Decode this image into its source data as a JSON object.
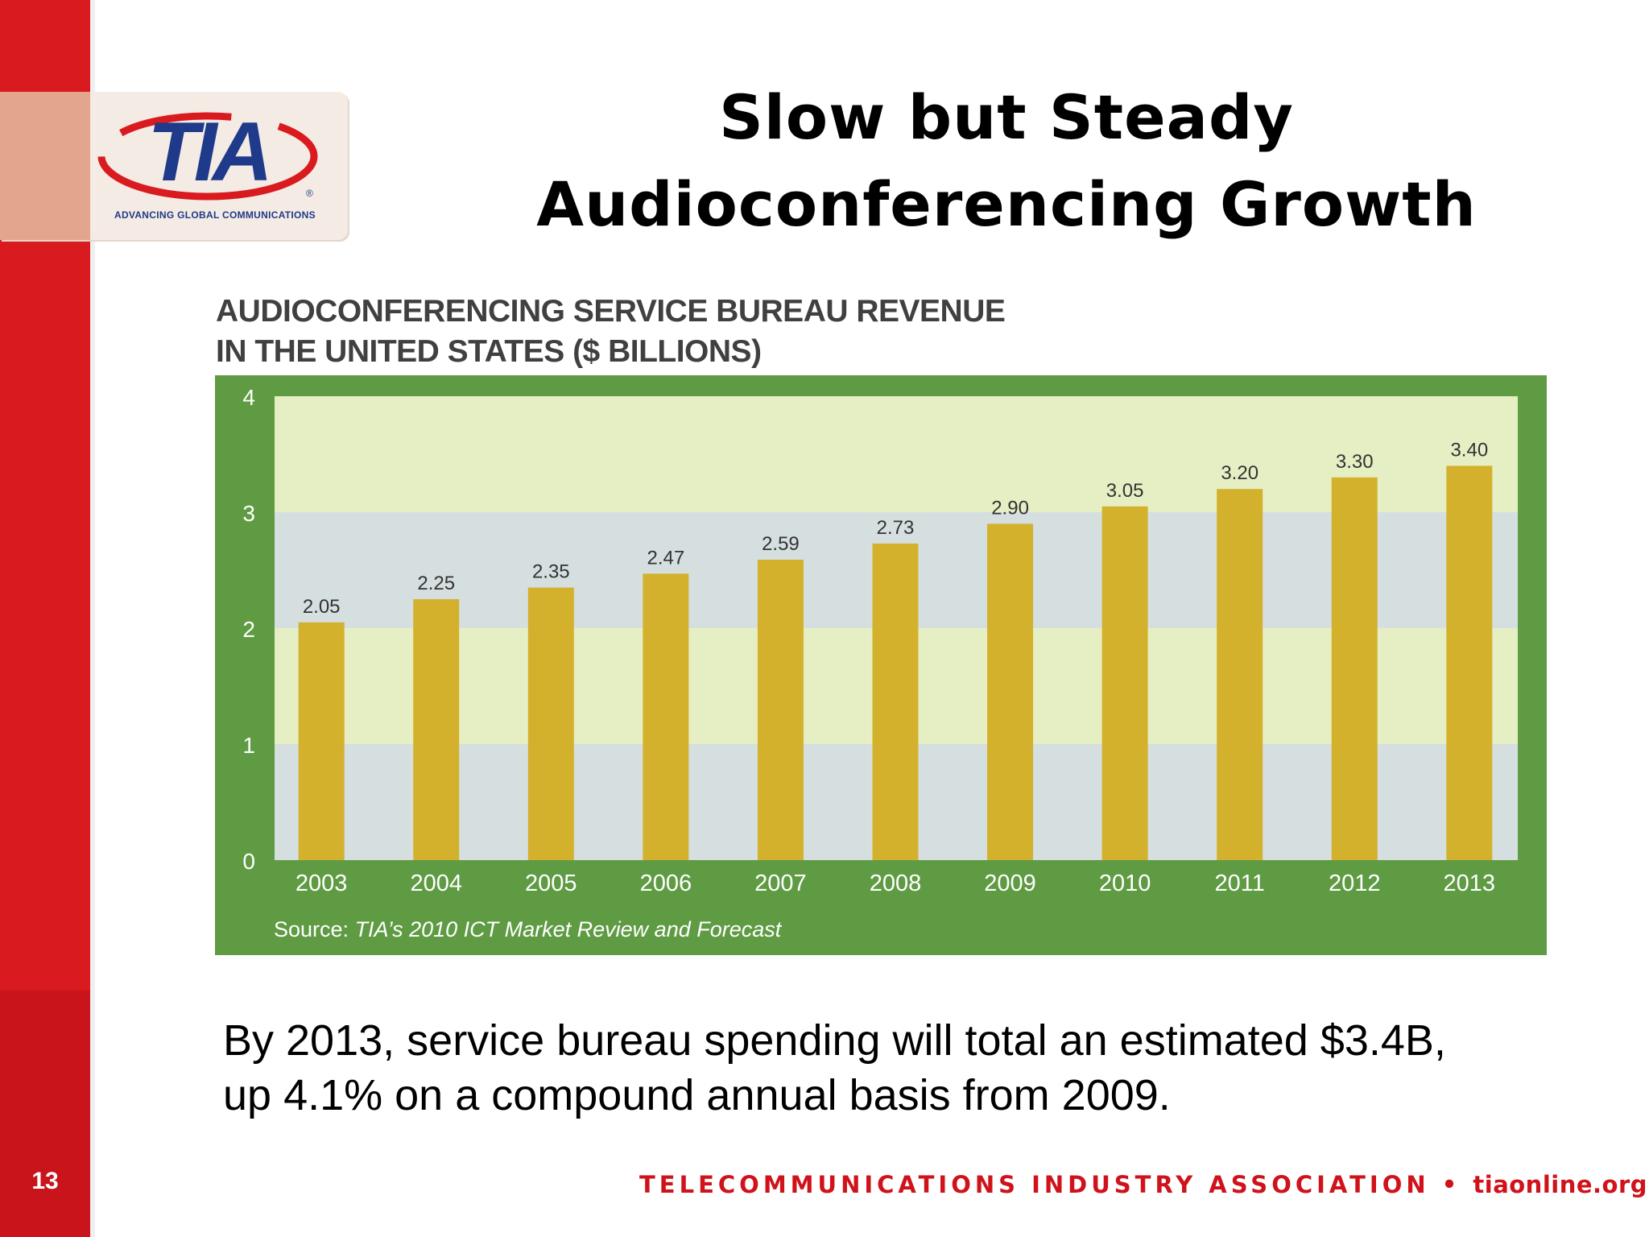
{
  "slide": {
    "title_line1": "Slow but Steady",
    "title_line2": "Audioconferencing Growth",
    "caption_line1": "By 2013, service bureau spending will total an estimated $3.4B,",
    "caption_line2": "up 4.1% on a compound annual basis from 2009.",
    "page_number": "13",
    "footer_org": "TELECOMMUNICATIONS INDUSTRY ASSOCIATION",
    "footer_bullet": "•",
    "footer_url": "tiaonline.org"
  },
  "logo": {
    "text": "TIA",
    "tagline": "ADVANCING GLOBAL COMMUNICATIONS",
    "registered": "®"
  },
  "colors": {
    "side_bar": "#d91a1f",
    "chart_frame": "#5f9b43",
    "bar_fill": "#d4b12c",
    "band_light": "#e6efc4",
    "band_blue": "#d5dfe0",
    "logo_blue": "#1f3a8a",
    "logo_red": "#d91a1f"
  },
  "chart_data": {
    "type": "bar",
    "title_line1": "AUDIOCONFERENCING SERVICE BUREAU REVENUE",
    "title_line2": "IN THE UNITED STATES ($ BILLIONS)",
    "categories": [
      "2003",
      "2004",
      "2005",
      "2006",
      "2007",
      "2008",
      "2009",
      "2010",
      "2011",
      "2012",
      "2013"
    ],
    "values": [
      2.05,
      2.25,
      2.35,
      2.47,
      2.59,
      2.73,
      2.9,
      3.05,
      3.2,
      3.3,
      3.4
    ],
    "value_labels": [
      "2.05",
      "2.25",
      "2.35",
      "2.47",
      "2.59",
      "2.73",
      "2.90",
      "3.05",
      "3.20",
      "3.30",
      "3.40"
    ],
    "y_ticks": [
      "0",
      "1",
      "2",
      "3",
      "4"
    ],
    "ylim": [
      0,
      4
    ],
    "grid": "alternating horizontal bands",
    "source_prefix": "Source: ",
    "source_text": "TIA’s 2010 ICT Market Review and Forecast"
  }
}
